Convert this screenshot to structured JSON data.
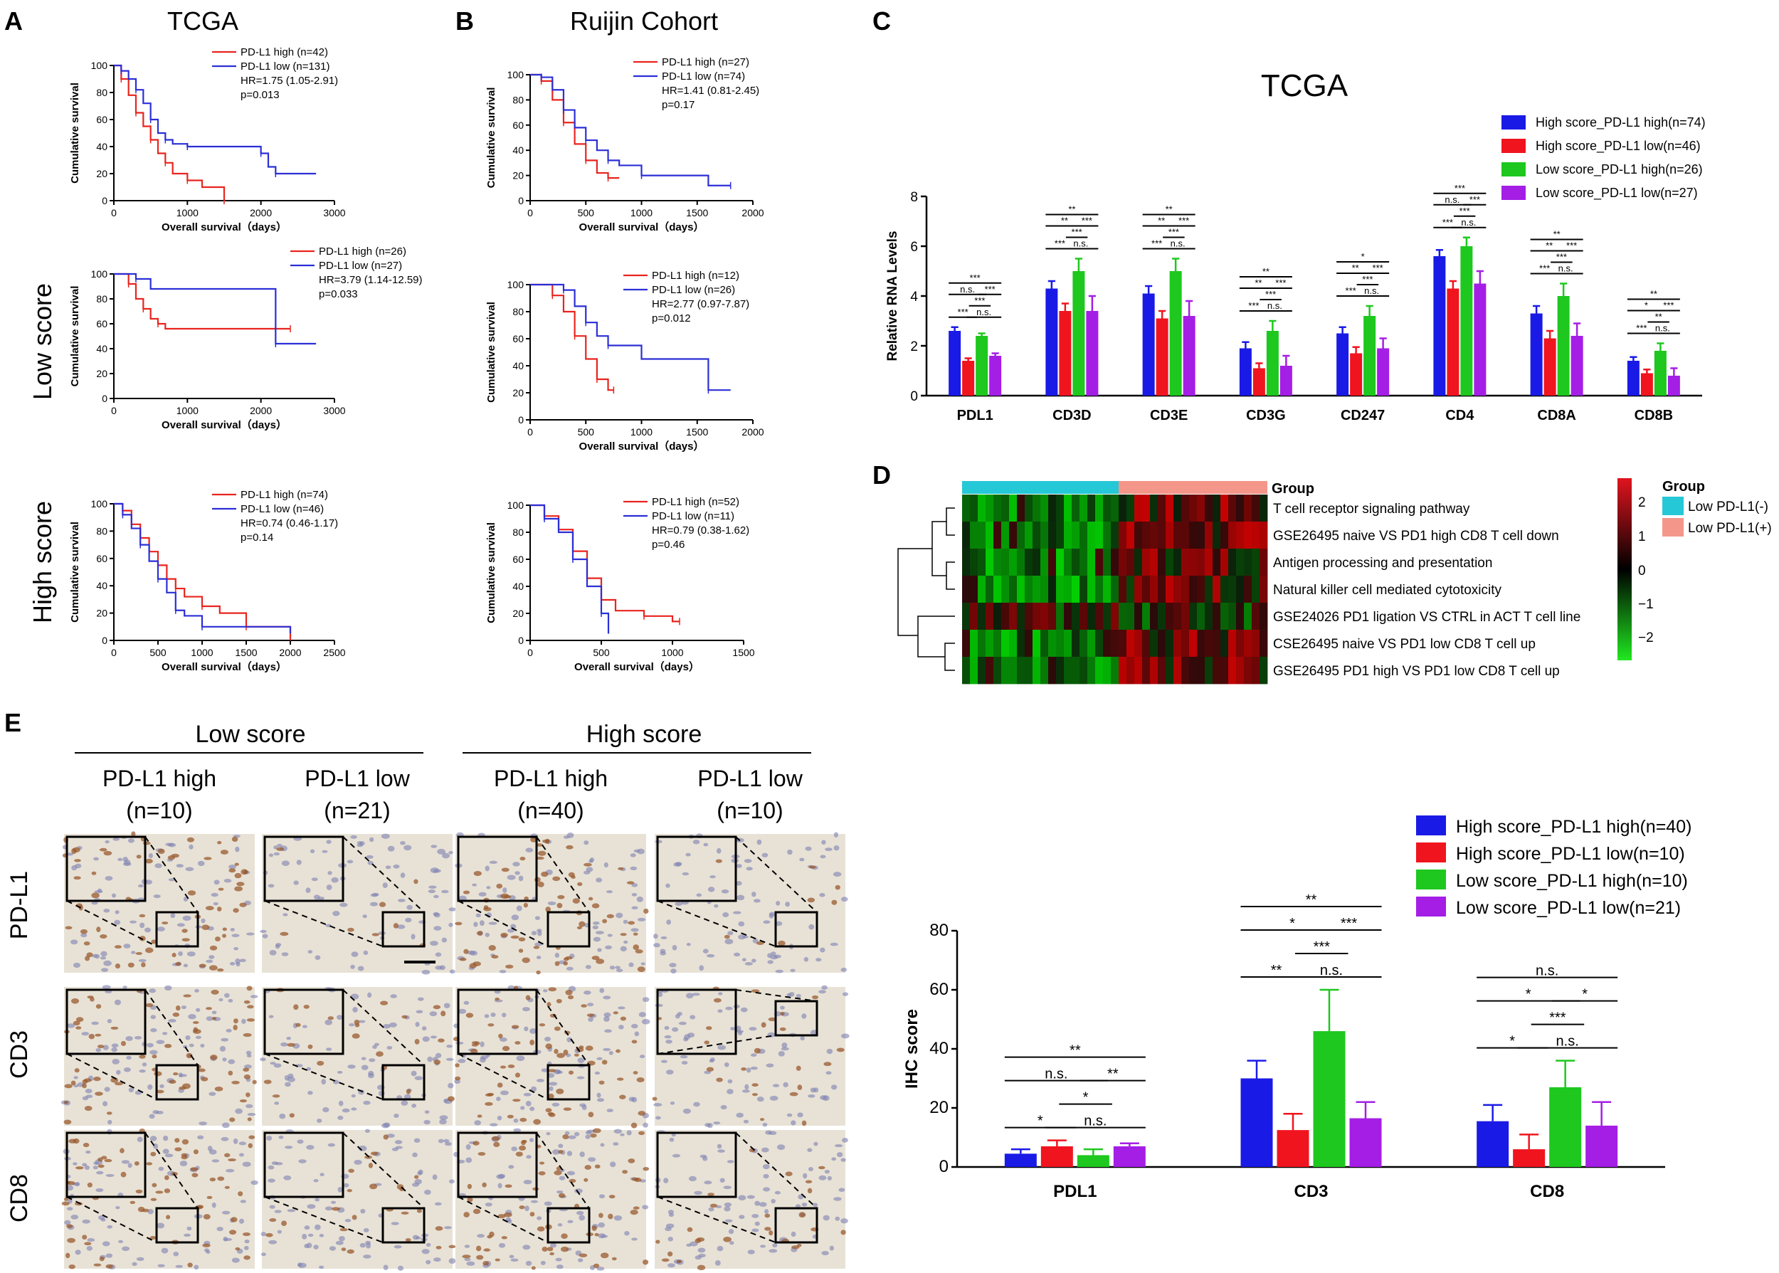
{
  "panels": {
    "A": "A",
    "B": "B",
    "C": "C",
    "D": "D",
    "E": "E"
  },
  "panel_a_title": "TCGA",
  "panel_b_title": "Ruijin Cohort",
  "row_labels": {
    "low": "Low score",
    "high": "High score"
  },
  "km_axes": {
    "xlabel": "Overall survival（days）",
    "ylabel": "Cumulative survival"
  },
  "chart_data": [
    {
      "id": "km_a1",
      "type": "line",
      "title": "TCGA",
      "xlabel": "Overall survival（days）",
      "ylabel": "Cumulative survival",
      "xlim": [
        0,
        3000
      ],
      "ylim": [
        0,
        100
      ],
      "xticks": [
        "0",
        "1000",
        "2000",
        "3000"
      ],
      "yticks": [
        "0",
        "20",
        "40",
        "60",
        "80",
        "100"
      ],
      "legend": [
        "PD-L1 high (n=42)",
        "PD-L1 low (n=131)"
      ],
      "stats": [
        "HR=1.75 (1.05-2.91)",
        "p=0.013"
      ],
      "series": [
        {
          "name": "PD-L1 high (n=42)",
          "color": "#e8241e",
          "x": [
            0,
            100,
            200,
            300,
            400,
            500,
            600,
            700,
            800,
            1000,
            1200,
            1500
          ],
          "y": [
            100,
            90,
            78,
            65,
            55,
            45,
            35,
            28,
            20,
            15,
            10,
            0
          ]
        },
        {
          "name": "PD-L1 low (n=131)",
          "color": "#2b2fd6",
          "x": [
            0,
            100,
            200,
            300,
            400,
            500,
            600,
            700,
            800,
            1000,
            1500,
            2000,
            2100,
            2200,
            2750
          ],
          "y": [
            100,
            96,
            90,
            82,
            72,
            60,
            50,
            45,
            42,
            40,
            40,
            35,
            25,
            20,
            20
          ]
        }
      ]
    },
    {
      "id": "km_a2",
      "type": "line",
      "xlabel": "Overall survival（days）",
      "ylabel": "Cumulative survival",
      "xlim": [
        0,
        3000
      ],
      "ylim": [
        0,
        100
      ],
      "xticks": [
        "0",
        "1000",
        "2000",
        "3000"
      ],
      "yticks": [
        "0",
        "20",
        "40",
        "60",
        "80",
        "100"
      ],
      "legend": [
        "PD-L1 high (n=26)",
        "PD-L1 low (n=27)"
      ],
      "stats": [
        "HR=3.79 (1.14-12.59)",
        "p=0.033"
      ],
      "series": [
        {
          "name": "PD-L1 high (n=26)",
          "color": "#e8241e",
          "x": [
            0,
            200,
            300,
            400,
            500,
            600,
            700,
            2400
          ],
          "y": [
            100,
            92,
            80,
            72,
            64,
            60,
            56,
            56
          ]
        },
        {
          "name": "PD-L1 low (n=27)",
          "color": "#2b2fd6",
          "x": [
            0,
            300,
            500,
            2200,
            2750
          ],
          "y": [
            100,
            96,
            88,
            44,
            44
          ]
        }
      ]
    },
    {
      "id": "km_a3",
      "type": "line",
      "xlabel": "Overall survival（days）",
      "ylabel": "Cumulative survival",
      "xlim": [
        0,
        2500
      ],
      "ylim": [
        0,
        100
      ],
      "xticks": [
        "0",
        "500",
        "1000",
        "1500",
        "2000",
        "2500"
      ],
      "yticks": [
        "0",
        "20",
        "40",
        "60",
        "80",
        "100"
      ],
      "legend": [
        "PD-L1 high (n=74)",
        "PD-L1 low (n=46)"
      ],
      "stats": [
        "HR=0.74 (0.46-1.17)",
        "p=0.14"
      ],
      "series": [
        {
          "name": "PD-L1 high (n=74)",
          "color": "#e8241e",
          "x": [
            0,
            100,
            200,
            300,
            400,
            500,
            600,
            700,
            800,
            1000,
            1200,
            1500,
            2000
          ],
          "y": [
            100,
            95,
            85,
            75,
            65,
            55,
            45,
            38,
            32,
            25,
            20,
            10,
            0
          ]
        },
        {
          "name": "PD-L1 low (n=46)",
          "color": "#2b2fd6",
          "x": [
            0,
            100,
            200,
            300,
            400,
            500,
            600,
            700,
            800,
            1000,
            2000
          ],
          "y": [
            100,
            92,
            82,
            70,
            58,
            45,
            35,
            22,
            18,
            10,
            5
          ]
        }
      ]
    },
    {
      "id": "km_b1",
      "type": "line",
      "title": "Ruijin Cohort",
      "xlabel": "Overall survival（days）",
      "ylabel": "Cumulative survival",
      "xlim": [
        0,
        2000
      ],
      "ylim": [
        0,
        100
      ],
      "xticks": [
        "0",
        "500",
        "1000",
        "1500",
        "2000"
      ],
      "yticks": [
        "0",
        "20",
        "40",
        "60",
        "80",
        "100"
      ],
      "legend": [
        "PD-L1 high (n=27)",
        "PD-L1 low (n=74)"
      ],
      "stats": [
        "HR=1.41 (0.81-2.45)",
        "p=0.17"
      ],
      "series": [
        {
          "name": "PD-L1 high (n=27)",
          "color": "#e8241e",
          "x": [
            0,
            100,
            200,
            300,
            400,
            500,
            600,
            700,
            800
          ],
          "y": [
            100,
            95,
            80,
            62,
            45,
            32,
            22,
            18,
            18
          ]
        },
        {
          "name": "PD-L1 low (n=74)",
          "color": "#2b2fd6",
          "x": [
            0,
            100,
            200,
            300,
            400,
            500,
            600,
            700,
            800,
            1000,
            1600,
            1800
          ],
          "y": [
            100,
            98,
            88,
            72,
            58,
            48,
            40,
            32,
            28,
            20,
            12,
            12
          ]
        }
      ]
    },
    {
      "id": "km_b2",
      "type": "line",
      "xlabel": "Overall survival（days）",
      "ylabel": "Cumulative survival",
      "xlim": [
        0,
        2000
      ],
      "ylim": [
        0,
        100
      ],
      "xticks": [
        "0",
        "500",
        "1000",
        "1500",
        "2000"
      ],
      "yticks": [
        "0",
        "20",
        "40",
        "60",
        "80",
        "100"
      ],
      "legend": [
        "PD-L1 high (n=12)",
        "PD-L1 low (n=26)"
      ],
      "stats": [
        "HR=2.77 (0.97-7.87)",
        "p=0.012"
      ],
      "series": [
        {
          "name": "PD-L1 high (n=12)",
          "color": "#e8241e",
          "x": [
            0,
            200,
            300,
            400,
            500,
            600,
            700,
            750
          ],
          "y": [
            100,
            92,
            80,
            62,
            45,
            30,
            22,
            22
          ]
        },
        {
          "name": "PD-L1 low (n=26)",
          "color": "#2b2fd6",
          "x": [
            0,
            300,
            400,
            500,
            600,
            700,
            1000,
            1600,
            1800
          ],
          "y": [
            100,
            96,
            84,
            72,
            62,
            55,
            45,
            22,
            22
          ]
        }
      ]
    },
    {
      "id": "km_b3",
      "type": "line",
      "xlabel": "Overall survival（days）",
      "ylabel": "Cumulative survival",
      "xlim": [
        0,
        1500
      ],
      "ylim": [
        0,
        100
      ],
      "xticks": [
        "0",
        "500",
        "1000",
        "1500"
      ],
      "yticks": [
        "0",
        "20",
        "40",
        "60",
        "80",
        "100"
      ],
      "legend": [
        "PD-L1 high (n=52)",
        "PD-L1 low (n=11)"
      ],
      "stats": [
        "HR=0.79 (0.38-1.62)",
        "p=0.46"
      ],
      "series": [
        {
          "name": "PD-L1 high (n=52)",
          "color": "#e8241e",
          "x": [
            0,
            100,
            200,
            300,
            400,
            500,
            600,
            800,
            1000,
            1050
          ],
          "y": [
            100,
            92,
            82,
            66,
            46,
            30,
            22,
            18,
            14,
            14
          ]
        },
        {
          "name": "PD-L1 low (n=11)",
          "color": "#2b2fd6",
          "x": [
            0,
            100,
            200,
            300,
            400,
            500,
            550
          ],
          "y": [
            100,
            90,
            80,
            60,
            40,
            20,
            5
          ]
        }
      ]
    },
    {
      "id": "bar_c",
      "type": "bar",
      "title": "TCGA",
      "ylabel": "Relative RNA Levels",
      "ylim": [
        0,
        8
      ],
      "yticks": [
        "0",
        "2",
        "4",
        "6",
        "8"
      ],
      "categories": [
        "PDL1",
        "CD3D",
        "CD3E",
        "CD3G",
        "CD247",
        "CD4",
        "CD8A",
        "CD8B"
      ],
      "series": [
        {
          "name": "High score_PD-L1 high(n=74)",
          "color": "#1a1ae6",
          "values": [
            2.6,
            4.3,
            4.1,
            1.9,
            2.5,
            5.6,
            3.3,
            1.4
          ],
          "errors": [
            0.15,
            0.3,
            0.3,
            0.25,
            0.25,
            0.25,
            0.3,
            0.15
          ]
        },
        {
          "name": "High score_PD-L1 low(n=46)",
          "color": "#f0141e",
          "values": [
            1.4,
            3.4,
            3.1,
            1.1,
            1.7,
            4.3,
            2.3,
            0.9
          ],
          "errors": [
            0.1,
            0.3,
            0.3,
            0.2,
            0.25,
            0.3,
            0.3,
            0.15
          ]
        },
        {
          "name": "Low score_PD-L1 high(n=26)",
          "color": "#1ec81e",
          "values": [
            2.4,
            5.0,
            5.0,
            2.6,
            3.2,
            6.0,
            4.0,
            1.8
          ],
          "errors": [
            0.1,
            0.5,
            0.5,
            0.4,
            0.4,
            0.35,
            0.5,
            0.3
          ]
        },
        {
          "name": "Low score_PD-L1 low(n=27)",
          "color": "#a41ee6",
          "values": [
            1.6,
            3.4,
            3.2,
            1.2,
            1.9,
            4.5,
            2.4,
            0.8
          ],
          "errors": [
            0.1,
            0.6,
            0.6,
            0.4,
            0.4,
            0.5,
            0.5,
            0.3
          ]
        }
      ],
      "significance": [
        [
          "***",
          "n.s.",
          "***",
          "***",
          "***",
          "n.s."
        ],
        [
          "**",
          "**",
          "***",
          "***",
          "***",
          "n.s."
        ],
        [
          "**",
          "**",
          "***",
          "***",
          "***",
          "n.s."
        ],
        [
          "**",
          "**",
          "***",
          "***",
          "***",
          "n.s."
        ],
        [
          "*",
          "**",
          "***",
          "***",
          "***",
          "n.s."
        ],
        [
          "***",
          "n.s.",
          "***",
          "***",
          "***",
          "n.s."
        ],
        [
          "**",
          "**",
          "***",
          "***",
          "***",
          "n.s."
        ],
        [
          "**",
          "*",
          "***",
          "**",
          "***",
          "n.s."
        ]
      ]
    },
    {
      "id": "heat_d",
      "type": "heatmap",
      "rows": [
        "T cell receptor signaling pathway",
        "GSE26495 naive VS PD1 high CD8 T cell down",
        "Antigen processing and presentation",
        "Natural killer cell mediated cytotoxicity",
        "GSE24026 PD1 ligation VS CTRL in ACT T cell line",
        "CSE26495 naive VS PD1 low CD8 T cell up",
        "GSE26495 PD1 high VS PD1 low CD8 T cell up"
      ],
      "group_label": "Group",
      "legend_title": "Group",
      "groups": [
        {
          "name": "Low PD-L1(-)",
          "color": "#25c8d6"
        },
        {
          "name": "Low PD-L1(+)",
          "color": "#f4968a"
        }
      ],
      "scale_ticks": [
        "2",
        "1",
        "0",
        "−1",
        "−2"
      ],
      "left_columns": 20,
      "right_columns": 19
    },
    {
      "id": "bar_e",
      "type": "bar",
      "ylabel": "IHC score",
      "ylim": [
        0,
        80
      ],
      "yticks": [
        "0",
        "20",
        "40",
        "60",
        "80"
      ],
      "categories": [
        "PDL1",
        "CD3",
        "CD8"
      ],
      "series": [
        {
          "name": "High score_PD-L1 high(n=40)",
          "color": "#1a1ae6",
          "values": [
            4.5,
            30,
            15.5
          ],
          "errors": [
            1.5,
            6,
            5.5
          ]
        },
        {
          "name": "High score_PD-L1 low(n=10)",
          "color": "#f0141e",
          "values": [
            7,
            12.5,
            6
          ],
          "errors": [
            2,
            5.5,
            5
          ]
        },
        {
          "name": "Low score_PD-L1 high(n=10)",
          "color": "#1ec81e",
          "values": [
            4,
            46,
            27
          ],
          "errors": [
            2,
            14,
            9
          ]
        },
        {
          "name": "Low score_PD-L1 low(n=21)",
          "color": "#a41ee6",
          "values": [
            7,
            16.5,
            14
          ],
          "errors": [
            1,
            5.5,
            8
          ]
        }
      ],
      "significance": [
        [
          "**",
          "n.s.",
          "**",
          "*",
          "*",
          "n.s."
        ],
        [
          "**",
          "*",
          "***",
          "***",
          "**",
          "n.s."
        ],
        [
          "n.s.",
          "*",
          "*",
          "***",
          "*",
          "n.s."
        ]
      ]
    }
  ],
  "panel_e": {
    "groups": [
      "Low score",
      "High score"
    ],
    "columns": [
      {
        "label": "PD-L1 high",
        "n": "(n=10)"
      },
      {
        "label": "PD-L1 low",
        "n": "(n=21)"
      },
      {
        "label": "PD-L1 high",
        "n": "(n=40)"
      },
      {
        "label": "PD-L1 low",
        "n": "(n=10)"
      }
    ],
    "rows": [
      "PD-L1",
      "CD3",
      "CD8"
    ]
  },
  "colors": {
    "red": "#e8241e",
    "blue": "#2b2fd6",
    "brown": "#9a5a2e",
    "tissue": "#e6dfd2"
  }
}
